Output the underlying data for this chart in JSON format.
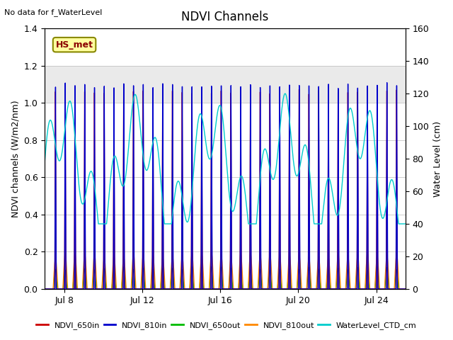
{
  "title": "NDVI Channels",
  "top_left_text": "No data for f_WaterLevel",
  "legend_box_text": "HS_met",
  "legend_box_text_color": "#8b0000",
  "legend_box_bg": "#ffffa0",
  "legend_box_border": "#888800",
  "ylabel_left": "NDVI channels (W/m2/nm)",
  "ylabel_right": "Water Level (cm)",
  "ylim_left": [
    0.0,
    1.4
  ],
  "ylim_right": [
    0,
    160
  ],
  "xlim_days": [
    7.0,
    25.5
  ],
  "xticks_days": [
    8,
    12,
    16,
    20,
    24
  ],
  "xtick_labels": [
    "Jul 8",
    "Jul 12",
    "Jul 16",
    "Jul 20",
    "Jul 24"
  ],
  "gray_band": [
    1.0,
    1.2
  ],
  "colors": {
    "NDVI_650in": "#cc0000",
    "NDVI_810in": "#0000cc",
    "NDVI_650out": "#00bb00",
    "NDVI_810out": "#ff8800",
    "WaterLevel": "#00cccc"
  },
  "lw": 1.0,
  "background_color": "#ffffff",
  "legend_entries": [
    {
      "label": "NDVI_650in",
      "color": "#cc0000"
    },
    {
      "label": "NDVI_810in",
      "color": "#0000cc"
    },
    {
      "label": "NDVI_650out",
      "color": "#00bb00"
    },
    {
      "label": "NDVI_810out",
      "color": "#ff8800"
    },
    {
      "label": "WaterLevel_CTD_cm",
      "color": "#00cccc"
    }
  ]
}
